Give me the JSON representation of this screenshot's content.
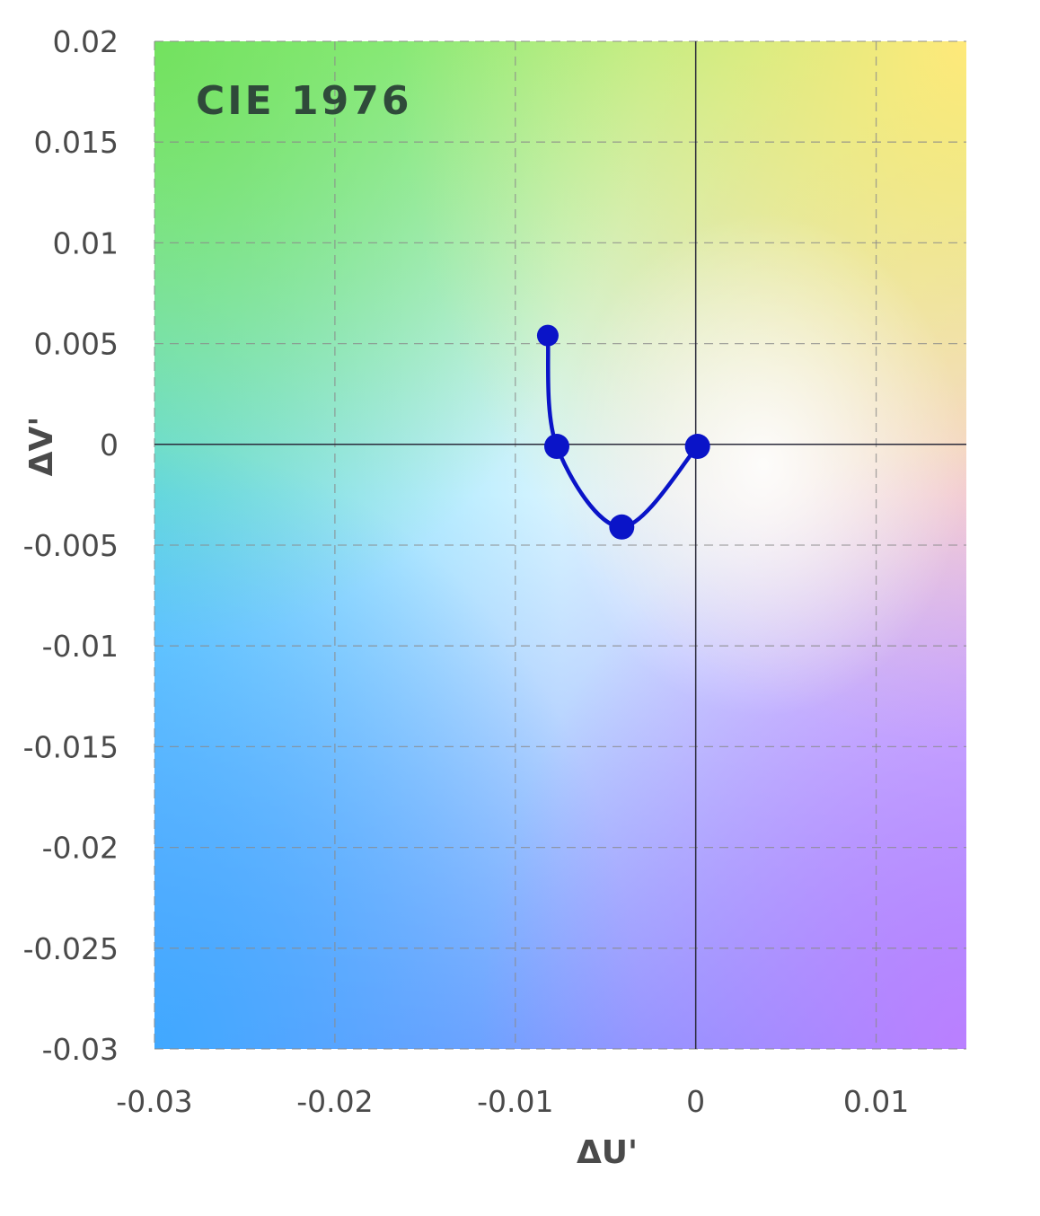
{
  "chart_data": {
    "type": "line",
    "title": "",
    "annotation": "CIE 1976",
    "xlabel": "ΔU'",
    "ylabel": "ΔV'",
    "xlim": [
      -0.03,
      0.015
    ],
    "ylim": [
      -0.03,
      0.02
    ],
    "xticks": [
      -0.03,
      -0.02,
      -0.01,
      0,
      0.01
    ],
    "xtick_labels": [
      "-0.03",
      "-0.02",
      "-0.01",
      "0",
      "0.01"
    ],
    "yticks": [
      0.02,
      0.015,
      0.01,
      0.005,
      0,
      -0.005,
      -0.01,
      -0.015,
      -0.02,
      -0.025,
      -0.03
    ],
    "ytick_labels": [
      "0.02",
      "0.015",
      "0.01",
      "0.005",
      "0",
      "-0.005",
      "-0.01",
      "-0.015",
      "-0.02",
      "-0.025",
      "-0.03"
    ],
    "grid": true,
    "background": "chromaticity color gradient",
    "series": [
      {
        "color": "#0a14c8",
        "points": [
          {
            "x": -0.0082,
            "y": 0.0054
          },
          {
            "x": -0.0077,
            "y": -0.0001
          },
          {
            "x": -0.0041,
            "y": -0.0041
          },
          {
            "x": 0.0001,
            "y": -0.0001
          }
        ]
      }
    ]
  }
}
